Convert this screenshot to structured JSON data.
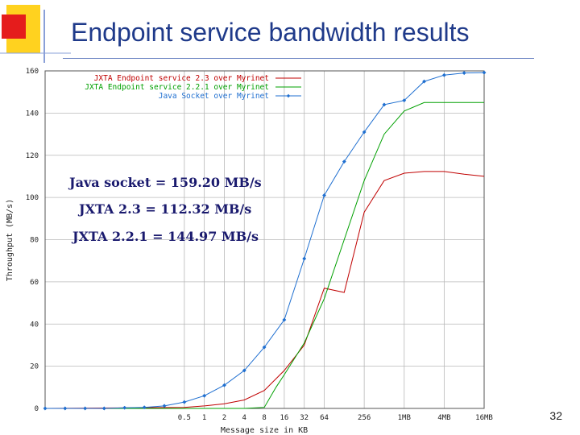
{
  "slide": {
    "title": "Endpoint service bandwidth results",
    "page_number": "32"
  },
  "annotations": [
    "Java socket = 159.20 MB/s",
    "JXTA 2.3 = 112.32 MB/s",
    "JXTA 2.2.1 = 144.97 MB/s"
  ],
  "colors": {
    "title": "#1f3a8a",
    "series_red": "#c00000",
    "series_green": "#00a000",
    "series_blue": "#1f6fd0",
    "logo_yellow": "#ffd21f",
    "logo_red": "#e51c1c"
  },
  "chart_data": {
    "type": "line",
    "title": "",
    "xlabel": "Message size in KB",
    "ylabel": "Throughput (MB/s)",
    "x_scale": "log2",
    "ylim": [
      0,
      160
    ],
    "y_ticks": [
      0,
      20,
      40,
      60,
      80,
      100,
      120,
      140,
      160
    ],
    "x_tick_labels": [
      "0.5",
      "1",
      "2",
      "4",
      "8",
      "16",
      "32",
      "64",
      "256",
      "1MB",
      "4MB",
      "16MB"
    ],
    "x_tick_values_kb": [
      0.5,
      1,
      2,
      4,
      8,
      16,
      32,
      64,
      256,
      1024,
      4096,
      16384
    ],
    "grid": true,
    "legend_position": "top-right",
    "series": [
      {
        "name": "JXTA Endpoint service 2.3 over Myrinet",
        "color": "#c00000",
        "marker": "none",
        "x": [
          0.004,
          0.5,
          1,
          2,
          4,
          8,
          16,
          32,
          64,
          128,
          256,
          512,
          1024,
          2048,
          4096,
          8192,
          16384
        ],
        "y": [
          0,
          0.5,
          1.2,
          2.2,
          4.0,
          8.5,
          18,
          30,
          57,
          55,
          93,
          108,
          111.5,
          112.3,
          112.3,
          111,
          110
        ]
      },
      {
        "name": "JXTA Endpoint service 2.2.1 over Myrinet",
        "color": "#00a000",
        "marker": "none",
        "x": [
          0.004,
          4,
          8,
          12,
          16,
          32,
          64,
          128,
          256,
          512,
          1024,
          2048,
          4096,
          8192,
          16384
        ],
        "y": [
          0,
          0,
          0.5,
          10,
          16,
          31,
          52,
          80,
          108,
          130,
          141,
          145,
          145,
          145,
          145
        ]
      },
      {
        "name": "Java Socket over Myrinet",
        "color": "#1f6fd0",
        "marker": "diamond",
        "x": [
          0.004,
          0.008,
          0.016,
          0.031,
          0.063,
          0.125,
          0.25,
          0.5,
          1,
          2,
          4,
          8,
          16,
          32,
          64,
          128,
          256,
          512,
          1024,
          2048,
          4096,
          8192,
          16384
        ],
        "y": [
          0,
          0,
          0,
          0,
          0.3,
          0.5,
          1.2,
          3,
          6,
          11,
          18,
          29,
          42,
          71,
          101,
          117,
          131,
          144,
          146,
          155,
          158,
          159,
          159.2
        ]
      }
    ]
  }
}
